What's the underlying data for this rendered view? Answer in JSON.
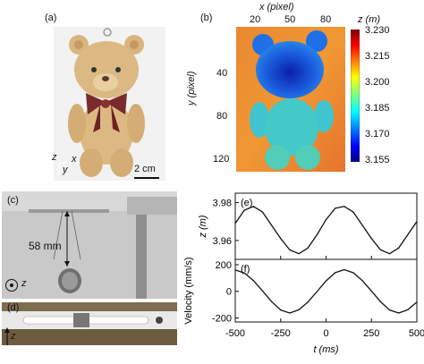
{
  "panels": {
    "a": {
      "label": "(a)",
      "axes_z": "z",
      "axes_x": "x",
      "axes_y": "y",
      "scale": "2 cm"
    },
    "b": {
      "label": "(b)",
      "xlabel": "x (pixel)",
      "ylabel": "y (pixel)",
      "xticks": [
        "20",
        "50",
        "80"
      ],
      "yticks": [
        "40",
        "80",
        "120"
      ],
      "colorbar_title": "z (m)",
      "colorbar_ticks": [
        "3.230",
        "3.215",
        "3.200",
        "3.185",
        "3.170",
        "3.155"
      ]
    },
    "c": {
      "label": "(c)",
      "length": "58 mm",
      "axis": "z"
    },
    "d": {
      "label": "(d)",
      "axis": "z"
    },
    "e": {
      "label": "(e)"
    },
    "f": {
      "label": "(f)"
    }
  },
  "chart_data": [
    {
      "type": "line",
      "panel": "e",
      "ylabel": "z (m)",
      "yticks": [
        "3.98",
        "3.96"
      ],
      "xlim": [
        -500,
        500
      ],
      "ylim": [
        3.95,
        3.985
      ],
      "series": [
        {
          "x": [
            -500,
            -450,
            -400,
            -350,
            -300,
            -250,
            -200,
            -150,
            -100,
            -50,
            0,
            50,
            100,
            150,
            200,
            250,
            300,
            350,
            400,
            450,
            500
          ],
          "y": [
            3.969,
            3.976,
            3.978,
            3.975,
            3.968,
            3.961,
            3.955,
            3.953,
            3.956,
            3.963,
            3.971,
            3.977,
            3.978,
            3.975,
            3.968,
            3.961,
            3.955,
            3.953,
            3.956,
            3.963,
            3.97
          ]
        }
      ]
    },
    {
      "type": "line",
      "panel": "f",
      "ylabel": "Velocity (mm/s)",
      "xlabel": "t (ms)",
      "yticks": [
        "200",
        "0",
        "-200"
      ],
      "xticks": [
        "-500",
        "-250",
        "0",
        "250",
        "500"
      ],
      "xlim": [
        -500,
        500
      ],
      "ylim": [
        -230,
        240
      ],
      "series": [
        {
          "x": [
            -500,
            -450,
            -400,
            -350,
            -300,
            -250,
            -200,
            -150,
            -100,
            -50,
            0,
            50,
            100,
            150,
            200,
            250,
            300,
            350,
            400,
            450,
            500
          ],
          "y": [
            160,
            138,
            81,
            3,
            -77,
            -140,
            -163,
            -139,
            -80,
            -2,
            78,
            140,
            163,
            139,
            80,
            2,
            -78,
            -140,
            -163,
            -139,
            -80
          ]
        }
      ]
    }
  ]
}
